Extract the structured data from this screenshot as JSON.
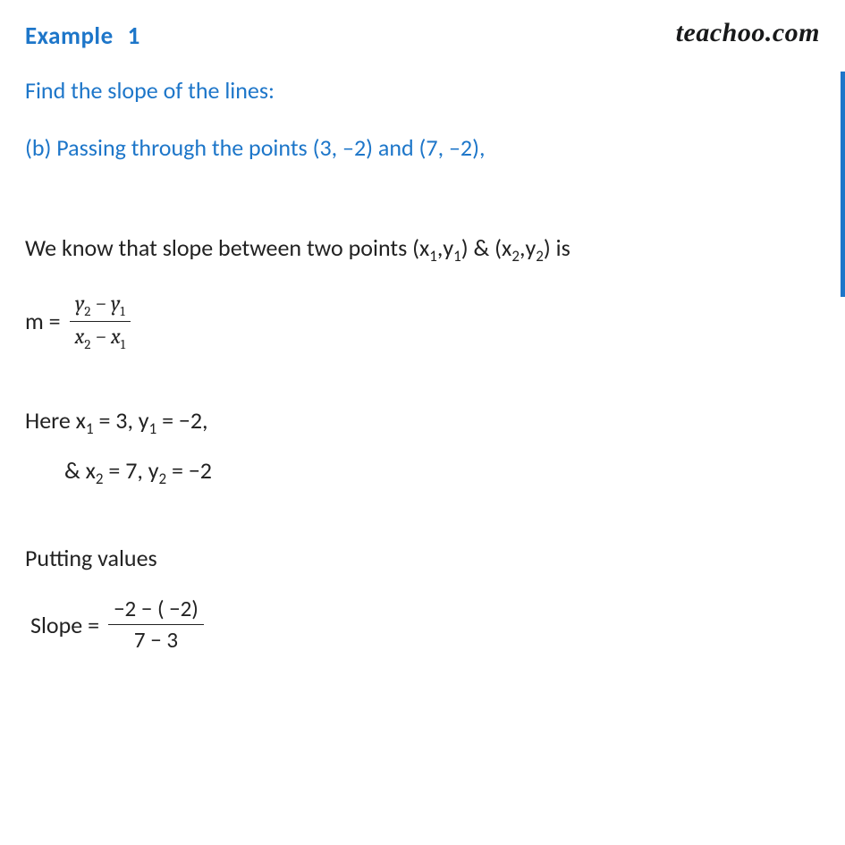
{
  "watermark": "teachoo.com",
  "heading_prefix": "Example",
  "heading_number": "1",
  "prompt": "Find the slope of the lines:",
  "sub_part": "(b) Passing through the points (3, –2) and (7, –2),",
  "known_prefix": "We know that slope between two points (x",
  "known_mid1": ",y",
  "known_mid2": ") & (x",
  "known_mid3": ",y",
  "known_suffix": ") is",
  "subscripts": {
    "one": "1",
    "two": "2"
  },
  "formula": {
    "lhs": "m =",
    "num_y": "y",
    "minus": " − ",
    "den_x": "x"
  },
  "here": {
    "line1_a": "Here x",
    "line1_b": " = 3, y",
    "line1_c": " = −2,",
    "line2_a": "& x",
    "line2_b": " = 7, y",
    "line2_c": " = −2"
  },
  "putting": "Putting values",
  "slope": {
    "lhs": "Slope =",
    "num": "−2 − ( −2)",
    "den": "7 − 3"
  },
  "colors": {
    "accent": "#1d76c9",
    "text": "#222222",
    "background": "#ffffff"
  }
}
